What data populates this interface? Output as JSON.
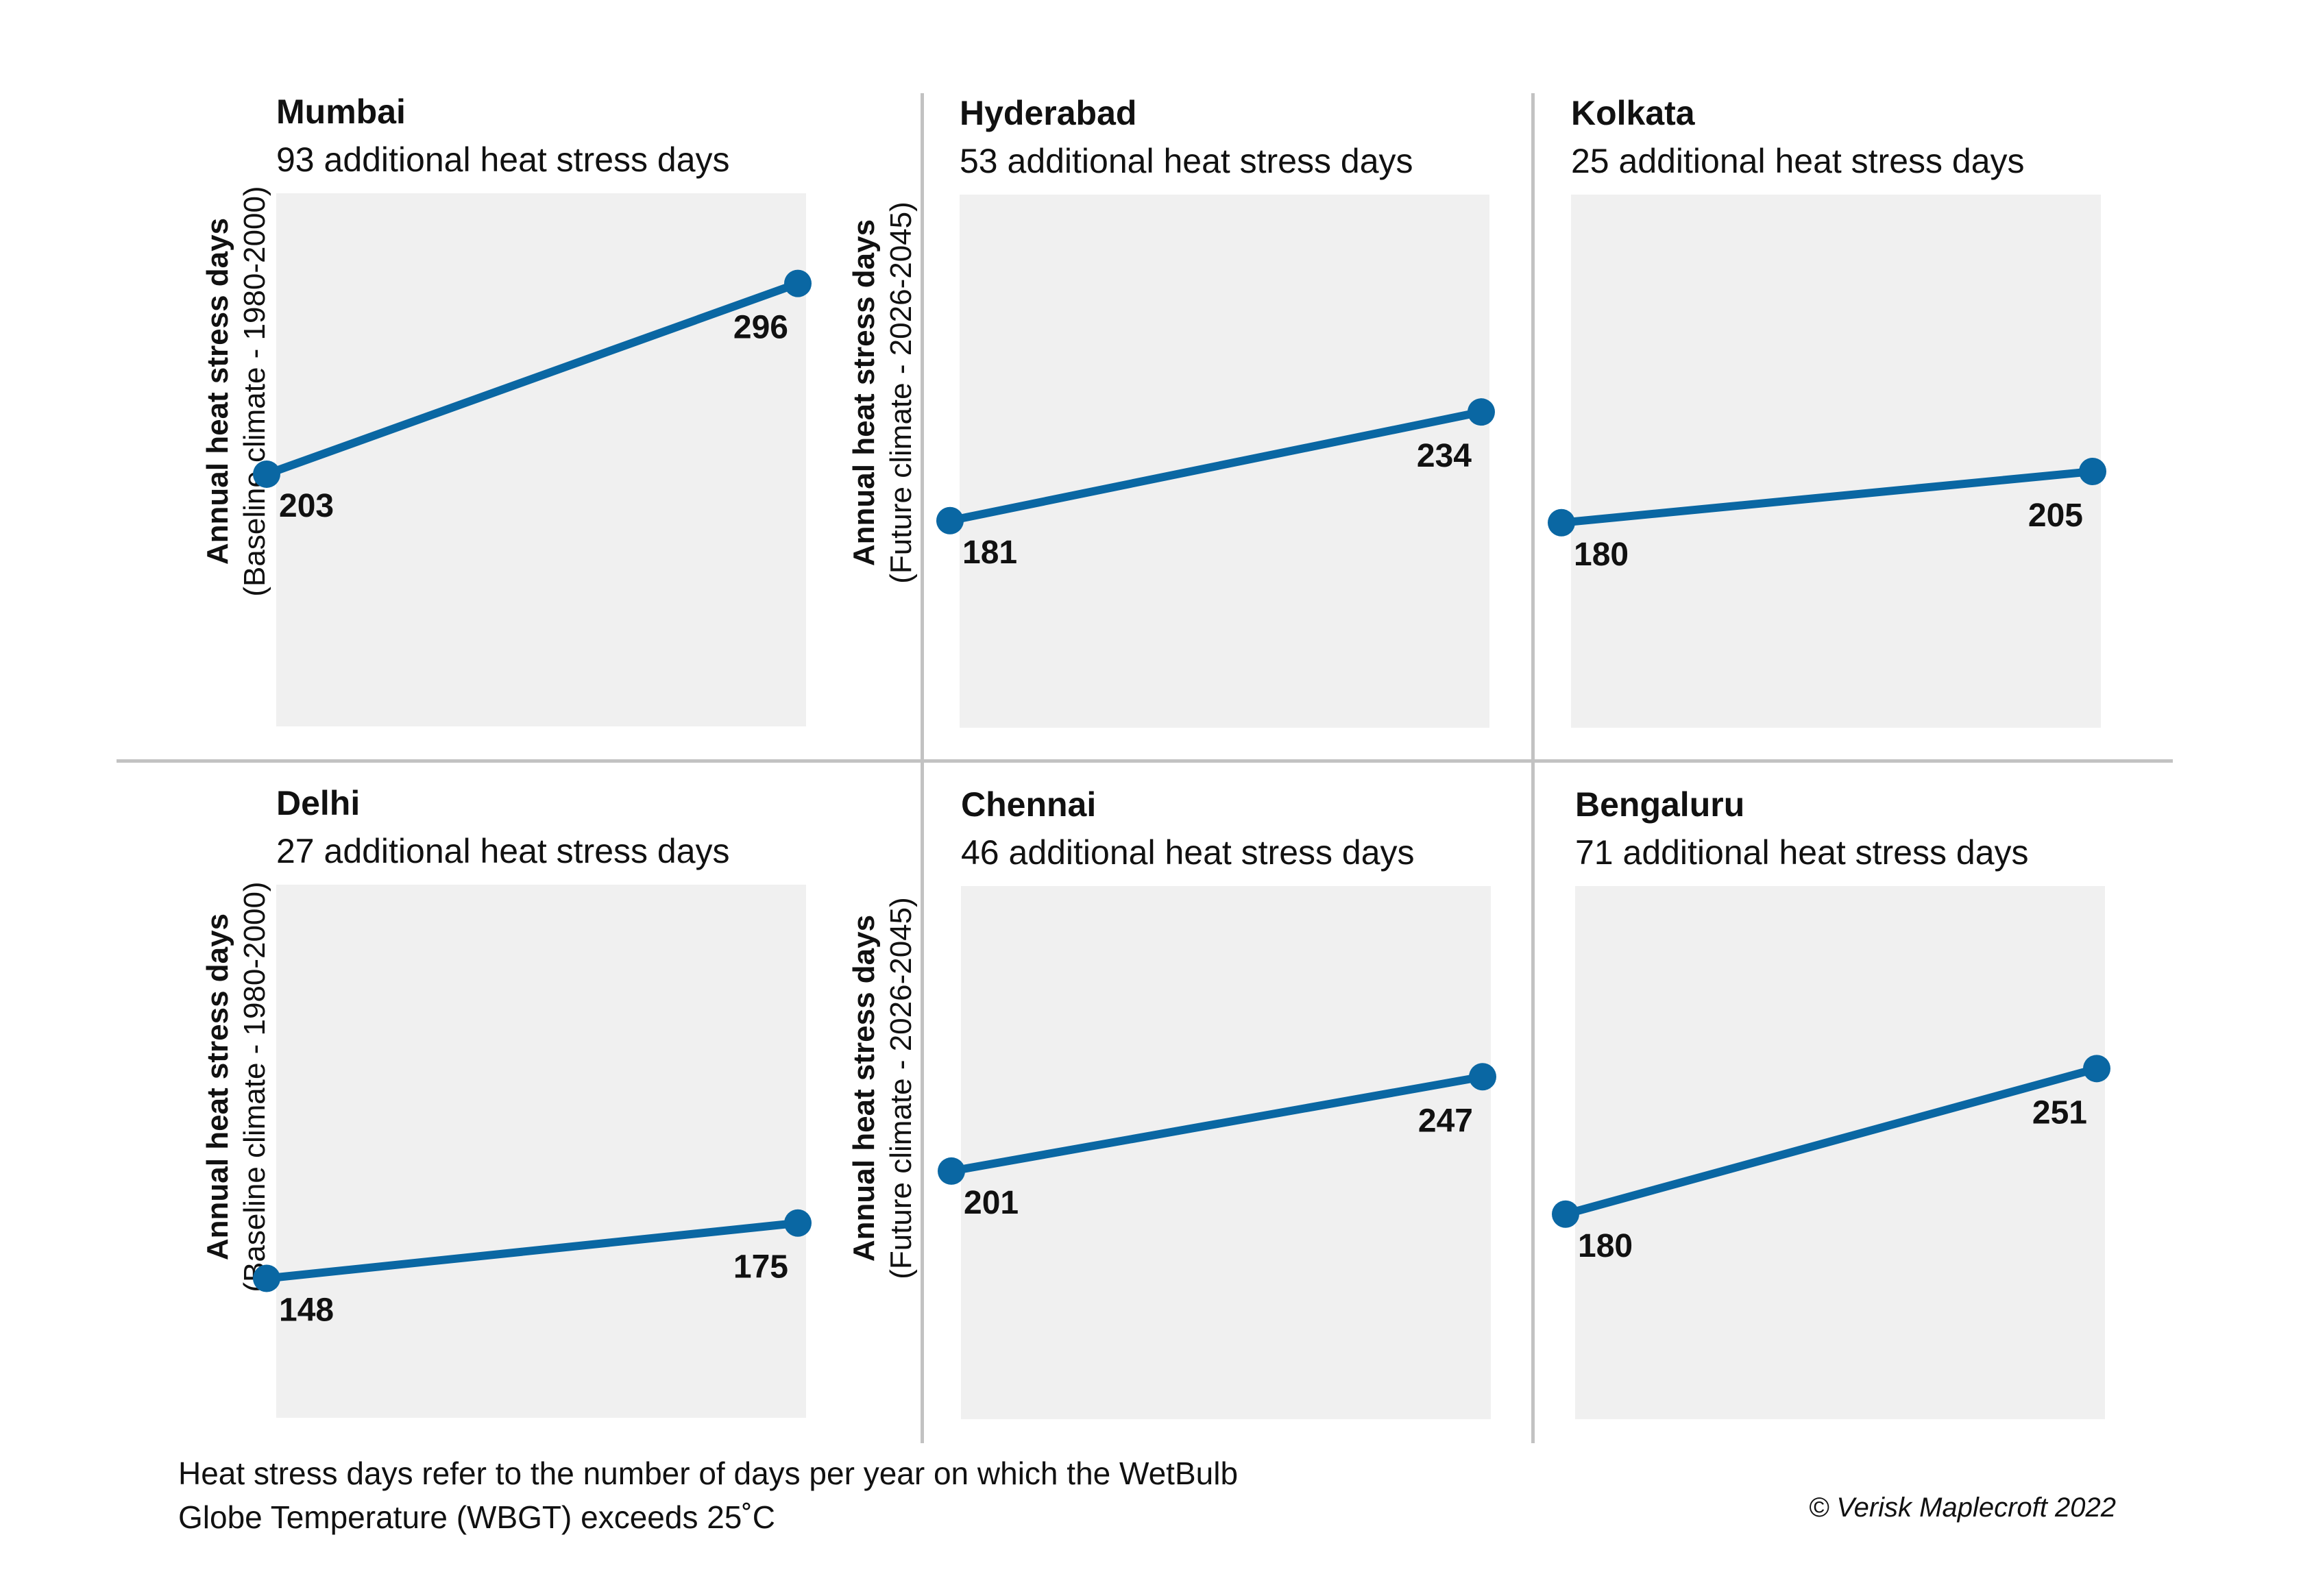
{
  "y_axis": {
    "baseline": {
      "line1": "Annual heat stress days",
      "line2": "(Baseline climate - 1980-2000)"
    },
    "future": {
      "line1": "Annual heat stress days",
      "line2": "(Future climate - 2026-2045)"
    }
  },
  "footnote": {
    "line1": "Heat stress days refer to the number of days per year on which the WetBulb",
    "line2": "Globe Temperature (WBGT) exceeds 25˚C"
  },
  "copyright": "© Verisk Maplecroft 2022",
  "colors": {
    "line": "#0a67a3",
    "plot_bg": "#f0f0f0",
    "divider": "#c2c2c2"
  },
  "chart_data": [
    {
      "type": "line",
      "title": "Mumbai",
      "subtitle": "93 additional heat stress days",
      "values": [
        203,
        296
      ],
      "ylim": [
        80,
        340
      ],
      "grid": false
    },
    {
      "type": "line",
      "title": "Hyderabad",
      "subtitle": "53 additional heat stress days",
      "values": [
        181,
        234
      ],
      "ylim": [
        80,
        340
      ],
      "grid": false
    },
    {
      "type": "line",
      "title": "Kolkata",
      "subtitle": "25 additional heat stress days",
      "values": [
        180,
        205
      ],
      "ylim": [
        80,
        340
      ],
      "grid": false
    },
    {
      "type": "line",
      "title": "Delhi",
      "subtitle": "27 additional heat stress days",
      "values": [
        148,
        175
      ],
      "ylim": [
        80,
        340
      ],
      "grid": false
    },
    {
      "type": "line",
      "title": "Chennai",
      "subtitle": "46 additional heat stress days",
      "values": [
        201,
        247
      ],
      "ylim": [
        80,
        340
      ],
      "grid": false
    },
    {
      "type": "line",
      "title": "Bengaluru",
      "subtitle": "71 additional heat stress days",
      "values": [
        180,
        251
      ],
      "ylim": [
        80,
        340
      ],
      "grid": false
    }
  ]
}
